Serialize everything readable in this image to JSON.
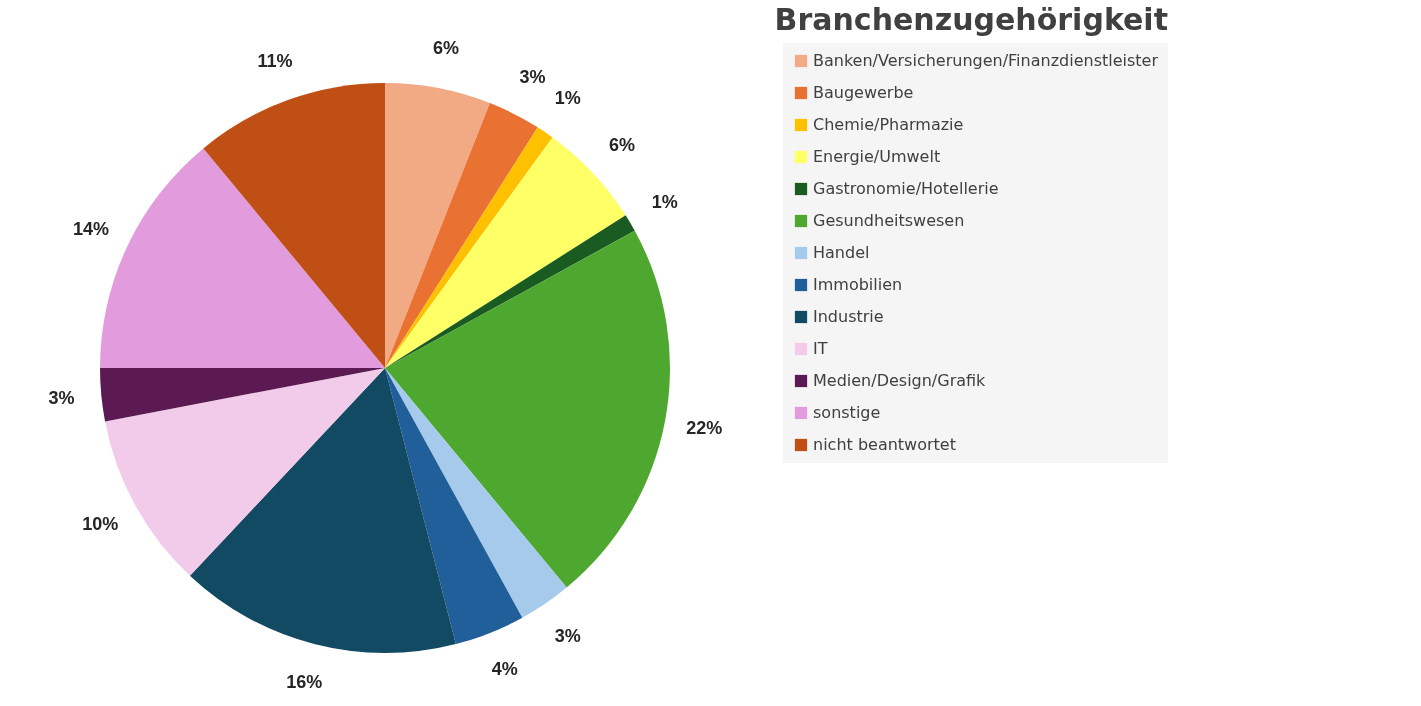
{
  "chart_data": {
    "type": "pie",
    "title": "Branchenzugehörigkeit",
    "categories": [
      "Banken/Versicherungen/Finanzdienstleister",
      "Baugewerbe",
      "Chemie/Pharmazie",
      "Energie/Umwelt",
      "Gastronomie/Hotellerie",
      "Gesundheitswesen",
      "Handel",
      "Immobilien",
      "Industrie",
      "IT",
      "Medien/Design/Grafik",
      "sonstige",
      "nicht beantwortet"
    ],
    "values": [
      6,
      3,
      1,
      6,
      1,
      22,
      3,
      4,
      16,
      10,
      3,
      14,
      11
    ],
    "value_labels": [
      "6%",
      "3%",
      "1%",
      "6%",
      "1%",
      "22%",
      "3%",
      "4%",
      "16%",
      "10%",
      "3%",
      "14%",
      "11%"
    ],
    "colors": [
      "#f2aa84",
      "#e97132",
      "#ffc000",
      "#ffff66",
      "#1a5b21",
      "#4ea72e",
      "#a6caec",
      "#215f9a",
      "#124a63",
      "#f1cbe9",
      "#5c1a52",
      "#e29cde",
      "#c04f15"
    ],
    "legend": "right"
  }
}
